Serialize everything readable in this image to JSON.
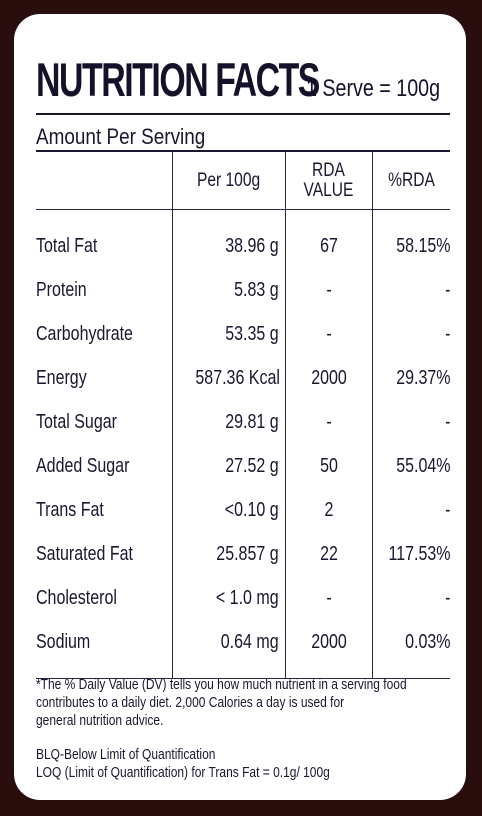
{
  "label": {
    "title": "NUTRITION FACTS",
    "serving": "1 Serve = 100g",
    "amount_per_serving": "Amount Per Serving"
  },
  "table": {
    "headers": [
      "",
      "Per 100g",
      "RDA\nVALUE",
      "%RDA"
    ],
    "rows": [
      {
        "name": "Total Fat",
        "per": "38.96 g",
        "rda": "67",
        "pct": "58.15%"
      },
      {
        "name": "Protein",
        "per": "5.83 g",
        "rda": "-",
        "pct": "-"
      },
      {
        "name": "Carbohydrate",
        "per": "53.35 g",
        "rda": "-",
        "pct": "-"
      },
      {
        "name": "Energy",
        "per": "587.36 Kcal",
        "rda": "2000",
        "pct": "29.37%"
      },
      {
        "name": "Total Sugar",
        "per": "29.81 g",
        "rda": "-",
        "pct": "-"
      },
      {
        "name": "Added Sugar",
        "per": "27.52 g",
        "rda": "50",
        "pct": "55.04%"
      },
      {
        "name": "Trans Fat",
        "per": "<0.10 g",
        "rda": "2",
        "pct": "-"
      },
      {
        "name": "Saturated Fat",
        "per": "25.857 g",
        "rda": "22",
        "pct": "117.53%"
      },
      {
        "name": "Cholesterol",
        "per": "< 1.0 mg",
        "rda": "-",
        "pct": "-"
      },
      {
        "name": "Sodium",
        "per": "0.64 mg",
        "rda": "2000",
        "pct": "0.03%"
      }
    ]
  },
  "footnote": {
    "dv_line1": "*The % Daily Value (DV) tells you how much nutrient in a serving food",
    "dv_line2": "contributes to a daily diet. 2,000 Calories a day is used for",
    "dv_line3": "general nutrition advice.",
    "blq": "BLQ-Below Limit of Quantification",
    "loq": "LOQ (Limit of Quantification) for Trans Fat = 0.1g/ 100g"
  },
  "colors": {
    "background": "#2a0d0d",
    "card": "#ffffff",
    "ink": "#1c1630"
  }
}
